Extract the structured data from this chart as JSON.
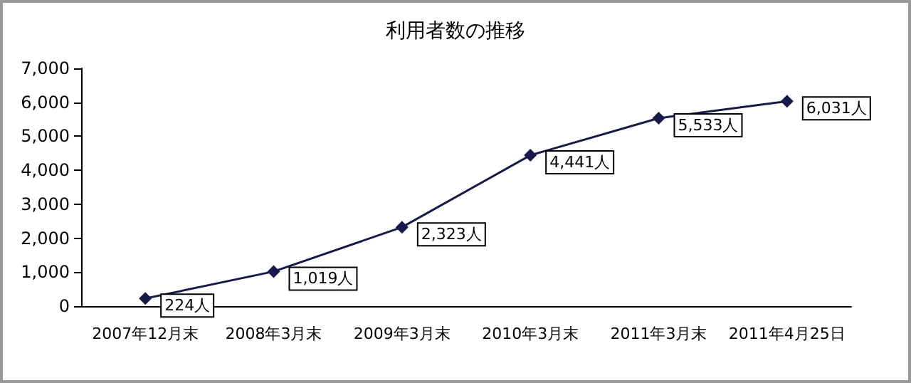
{
  "chart_data": {
    "type": "line",
    "title": "利用者数の推移",
    "categories": [
      "2007年12月末",
      "2008年3月末",
      "2009年3月末",
      "2010年3月末",
      "2011年3月末",
      "2011年4月25日"
    ],
    "series": [
      {
        "color": "#1a1a4a",
        "values": [
          224,
          1019,
          2323,
          4441,
          5533,
          6031
        ],
        "value_labels": [
          "224人",
          "1,019人",
          "2,323人",
          "4,441人",
          "5,533人",
          "6,031人"
        ]
      }
    ],
    "ylim": [
      0,
      7000
    ],
    "yticks": [
      0,
      {
        "value": 1000,
        "label": "1,000"
      },
      {
        "value": 2000,
        "label": "2,000"
      },
      {
        "value": 3000,
        "label": "3,000"
      },
      {
        "value": 4000,
        "label": "4,000"
      },
      {
        "value": 5000,
        "label": "5,000"
      },
      {
        "value": 6000,
        "label": "6,000"
      },
      {
        "value": 7000,
        "label": "7,000"
      }
    ],
    "grid": false,
    "marker": "diamond",
    "line_style": "solid"
  }
}
